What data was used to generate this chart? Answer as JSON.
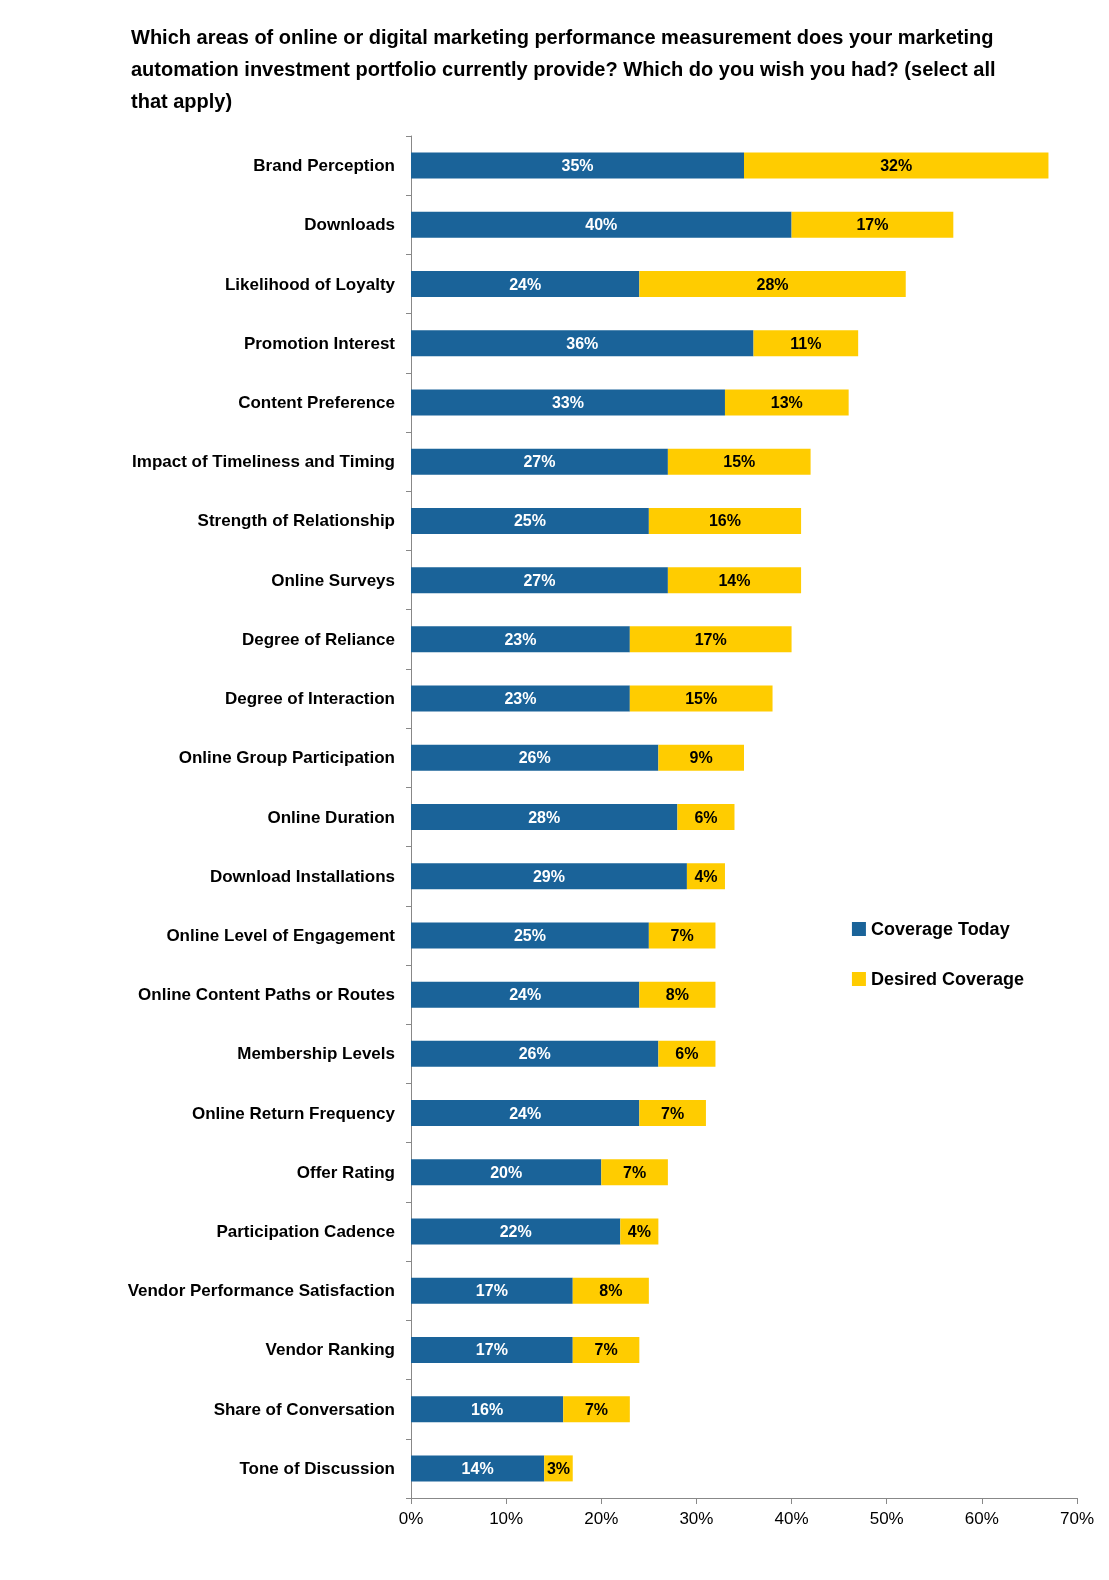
{
  "chart_data": {
    "type": "bar",
    "orientation": "horizontal",
    "stacked": true,
    "title": "Which areas of online or digital marketing performance measurement does your marketing automation investment portfolio currently provide? Which do you wish you had? (select all that apply)",
    "categories": [
      "Brand Perception",
      "Downloads",
      "Likelihood of Loyalty",
      "Promotion Interest",
      "Content Preference",
      "Impact of Timeliness and Timing",
      "Strength of Relationship",
      "Online Surveys",
      "Degree of Reliance",
      "Degree of Interaction",
      "Online Group Participation",
      "Online Duration",
      "Download Installations",
      "Online Level of Engagement",
      "Online Content Paths or Routes",
      "Membership Levels",
      "Online Return Frequency",
      "Offer Rating",
      "Participation Cadence",
      "Vendor Performance Satisfaction",
      "Vendor Ranking",
      "Share of Conversation",
      "Tone of Discussion"
    ],
    "series": [
      {
        "name": "Coverage Today",
        "color": "#1a6399",
        "values": [
          35,
          40,
          24,
          36,
          33,
          27,
          25,
          27,
          23,
          23,
          26,
          28,
          29,
          25,
          24,
          26,
          24,
          20,
          22,
          17,
          17,
          16,
          14
        ],
        "value_labels": [
          "35%",
          "40%",
          "24%",
          "36%",
          "33%",
          "27%",
          "25%",
          "27%",
          "23%",
          "23%",
          "26%",
          "28%",
          "29%",
          "25%",
          "24%",
          "26%",
          "24%",
          "20%",
          "22%",
          "17%",
          "17%",
          "16%",
          "14%"
        ]
      },
      {
        "name": "Desired Coverage",
        "color": "#ffcc00",
        "values": [
          32,
          17,
          28,
          11,
          13,
          15,
          16,
          14,
          17,
          15,
          9,
          6,
          4,
          7,
          8,
          6,
          7,
          7,
          4,
          8,
          7,
          7,
          3
        ],
        "value_labels": [
          "32%",
          "17%",
          "28%",
          "11%",
          "13%",
          "15%",
          "16%",
          "14%",
          "17%",
          "15%",
          "9%",
          "6%",
          "4%",
          "7%",
          "8%",
          "6%",
          "7%",
          "7%",
          "4%",
          "8%",
          "7%",
          "7%",
          "3%"
        ]
      }
    ],
    "xlim": [
      0,
      70
    ],
    "xticks": [
      {
        "value": 0,
        "label": "0%"
      },
      {
        "value": 10,
        "label": "10%"
      },
      {
        "value": 20,
        "label": "20%"
      },
      {
        "value": 30,
        "label": "30%"
      },
      {
        "value": 40,
        "label": "40%"
      },
      {
        "value": 50,
        "label": "50%"
      },
      {
        "value": 60,
        "label": "60%"
      },
      {
        "value": 70,
        "label": "70%"
      }
    ],
    "grid": false,
    "legend": "right"
  }
}
